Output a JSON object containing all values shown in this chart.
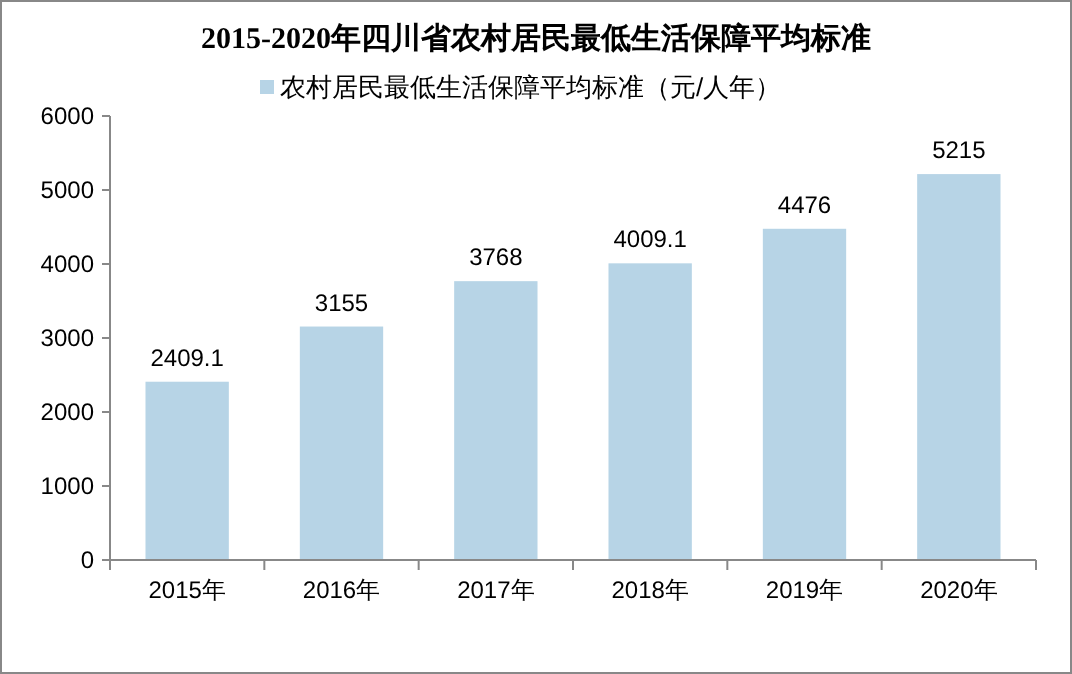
{
  "chart_data": {
    "type": "bar",
    "title": "2015-2020年四川省农村居民最低生活保障平均标准",
    "categories": [
      "2015年",
      "2016年",
      "2017年",
      "2018年",
      "2019年",
      "2020年"
    ],
    "series": [
      {
        "name": "农村居民最低生活保障平均标准（元/人年）",
        "color": "#b7d4e6",
        "values": [
          2409.1,
          3155,
          3768,
          4009.1,
          4476,
          5215
        ]
      }
    ],
    "ylim": [
      0,
      6000
    ],
    "yticks": [
      0,
      1000,
      2000,
      3000,
      4000,
      5000,
      6000
    ],
    "grid": false,
    "legend": "top",
    "data_labels": true
  }
}
